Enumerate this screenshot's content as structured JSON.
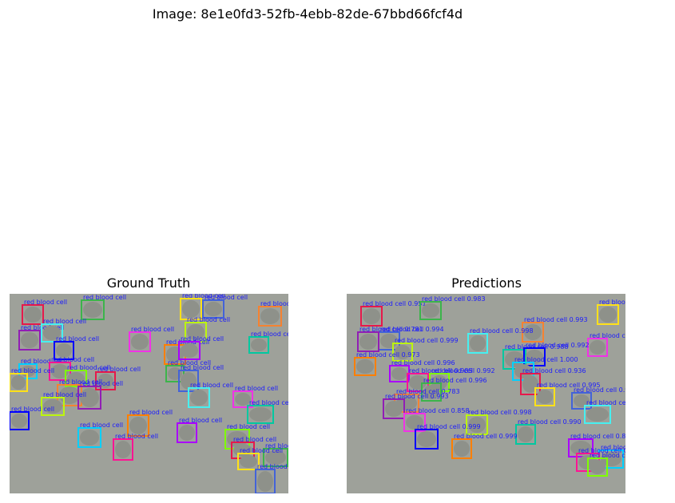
{
  "figure": {
    "title": "Image: 8e1e0fd3-52fb-4ebb-82de-67bbd66fcf4d"
  },
  "panels": {
    "ground_truth": {
      "title": "Ground Truth",
      "boxes": [
        {
          "label": "red blood cell"
        },
        {
          "label": "red blood cell"
        },
        {
          "label": "red blood cell"
        },
        {
          "label": "red blood cell"
        },
        {
          "label": "red blood cell"
        },
        {
          "label": "red blood cell"
        },
        {
          "label": "red blood cell"
        },
        {
          "label": "red blood cell"
        },
        {
          "label": "red blood cell"
        },
        {
          "label": "red blood cell"
        },
        {
          "label": "red blood cell"
        },
        {
          "label": "red blood cell"
        },
        {
          "label": "red blood cell"
        },
        {
          "label": "red blood cell"
        },
        {
          "label": "red blood cell"
        },
        {
          "label": "red blood cell"
        },
        {
          "label": "red blood cell"
        },
        {
          "label": "red blood cell"
        },
        {
          "label": "red blood cell"
        },
        {
          "label": "red blood cell"
        },
        {
          "label": "red blood cell"
        },
        {
          "label": "red blood cell"
        },
        {
          "label": "red blood cell"
        },
        {
          "label": "red blood cell"
        },
        {
          "label": "red blood cell"
        },
        {
          "label": "red blood cell"
        },
        {
          "label": "red blood cell"
        },
        {
          "label": "red blood cell"
        },
        {
          "label": "red blood cell"
        },
        {
          "label": "red blood cell"
        },
        {
          "label": "red blood cell"
        },
        {
          "label": "red blood cell"
        },
        {
          "label": "red blood cell"
        },
        {
          "label": "red blood cell"
        },
        {
          "label": "red blood cell"
        },
        {
          "label": "red blood cell"
        }
      ]
    },
    "predictions": {
      "title": "Predictions",
      "boxes": [
        {
          "label": "red blood cell 0.951"
        },
        {
          "label": "red blood cell 0.983"
        },
        {
          "label": "red blood cell 0.996"
        },
        {
          "label": "red blood cell 0.994"
        },
        {
          "label": "red blood cell 0.993"
        },
        {
          "label": "red blood cell 0.781"
        },
        {
          "label": "red blood cell 0.998"
        },
        {
          "label": "red blood cell 1.000"
        },
        {
          "label": "red blood cell 0.999"
        },
        {
          "label": "red blood cell 0.988"
        },
        {
          "label": "red blood cell 0.992"
        },
        {
          "label": "red blood cell 0.973"
        },
        {
          "label": "red blood cell 0.996"
        },
        {
          "label": "red blood cell 1.000"
        },
        {
          "label": "red blood cell 0.985"
        },
        {
          "label": "red blood cell 0.992"
        },
        {
          "label": "red blood cell 0.936"
        },
        {
          "label": "red blood cell 0.996"
        },
        {
          "label": "red blood cell 0.995"
        },
        {
          "label": "red blood cell 0.995"
        },
        {
          "label": "red blood cell 0.783"
        },
        {
          "label": "red blood cell 0.993"
        },
        {
          "label": "red blood cell 0.998"
        },
        {
          "label": "red blood cell 0.858"
        },
        {
          "label": "red blood cell 0.998"
        },
        {
          "label": "red blood cell 0.990"
        },
        {
          "label": "red blood cell 0.999"
        },
        {
          "label": "red blood cell 0.999"
        },
        {
          "label": "red blood cell 0.823"
        },
        {
          "label": "red blood cell 0.987"
        },
        {
          "label": "red blood cell 0.953"
        },
        {
          "label": "red blood cell 0.724"
        }
      ]
    }
  },
  "colors": {
    "background": "#9ea19a",
    "label_text": "#1a1aff",
    "palette": [
      "#e6194b",
      "#3cb44b",
      "#ffe119",
      "#4363d8",
      "#f58231",
      "#911eb4",
      "#46f0f0",
      "#f032e6",
      "#bcf60c",
      "#00c8a0",
      "#0000ff",
      "#ff7f00",
      "#aa00ff",
      "#00d0ff",
      "#ff1493",
      "#7fff00"
    ]
  }
}
